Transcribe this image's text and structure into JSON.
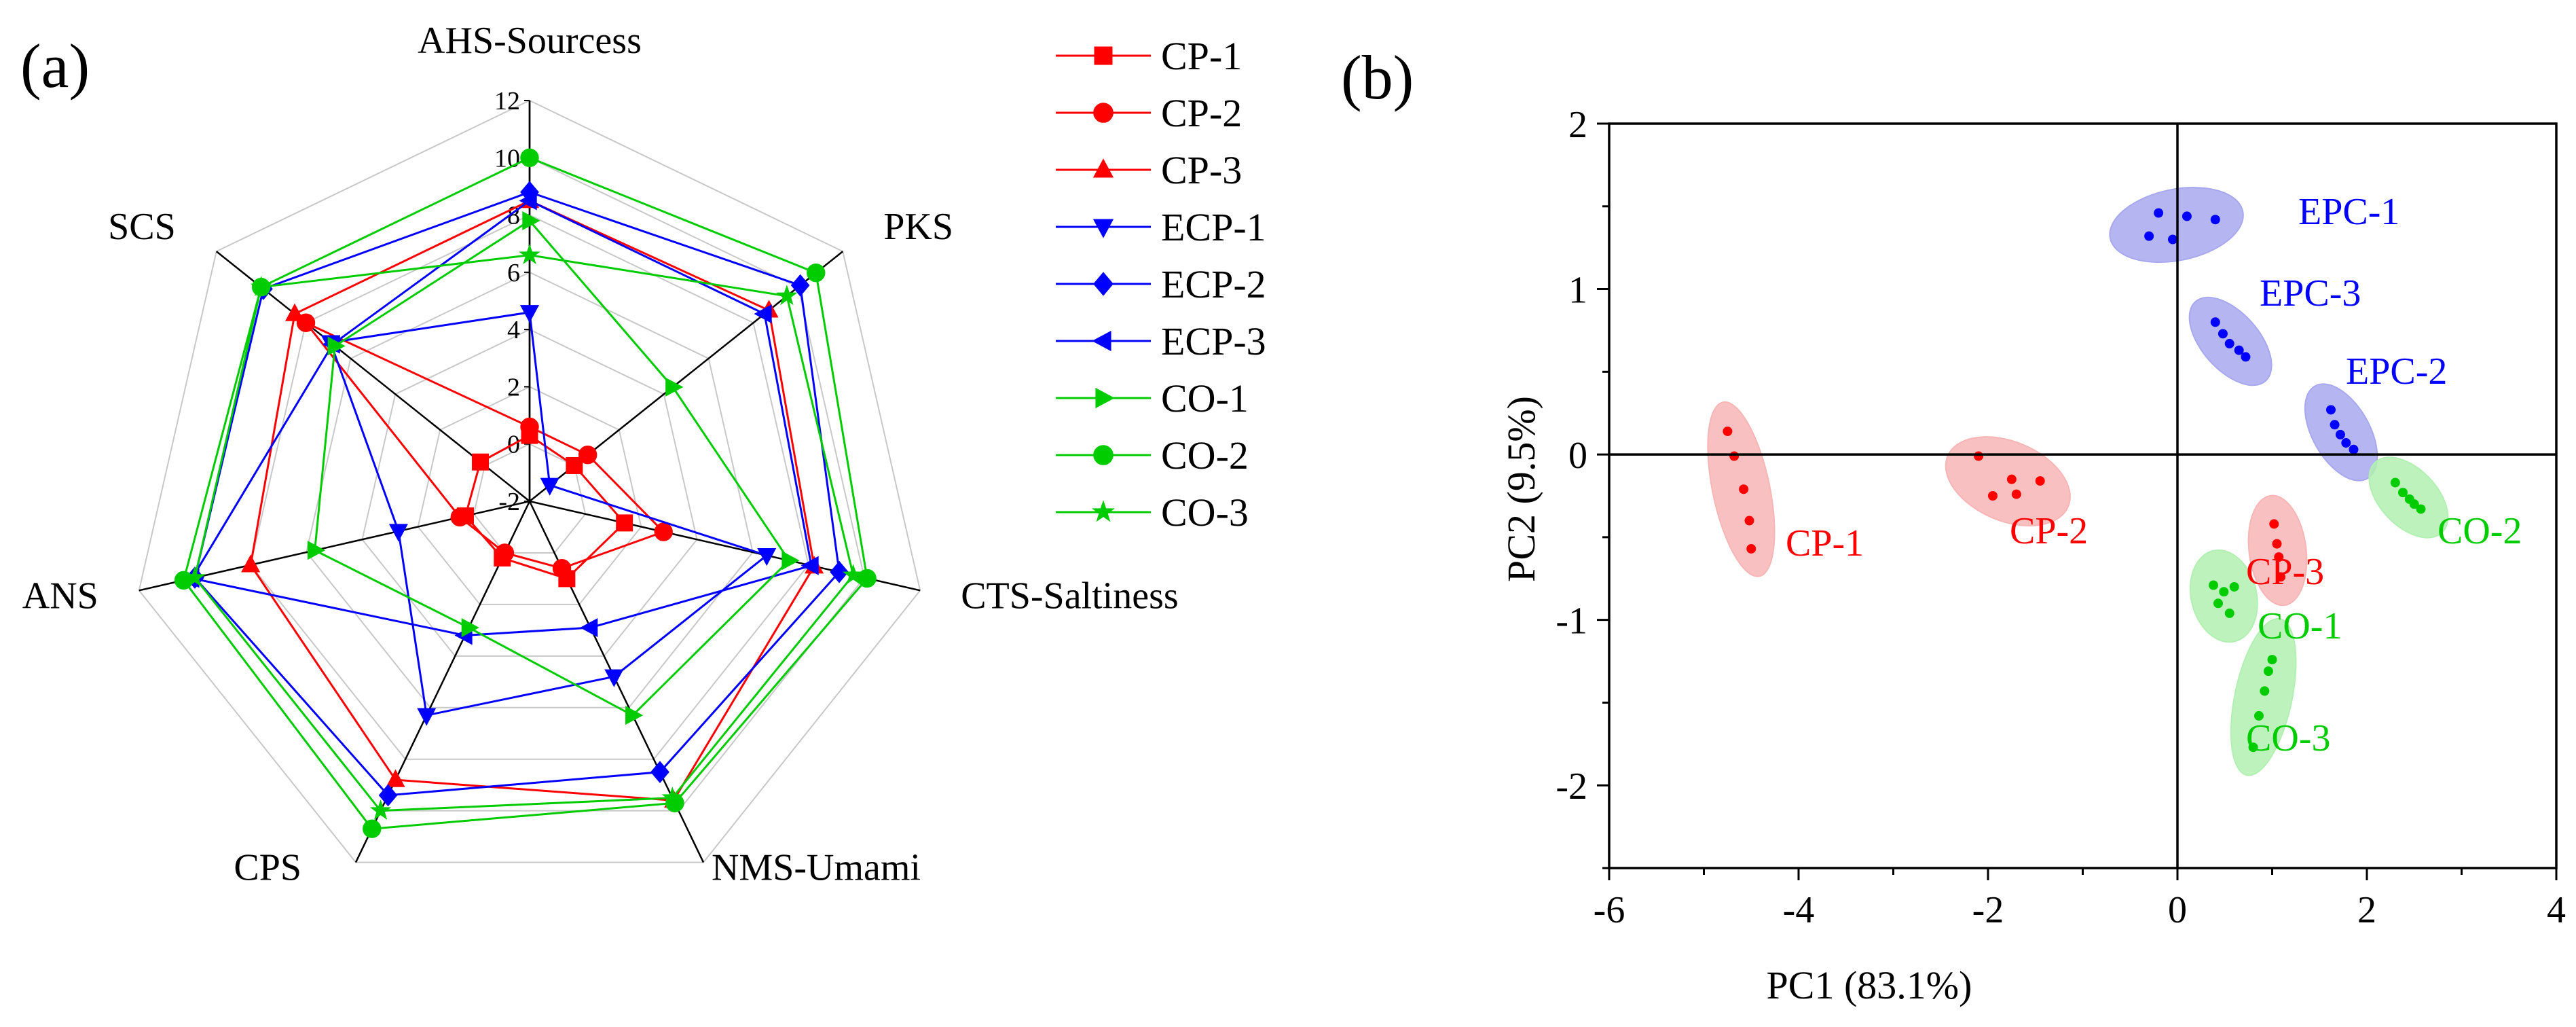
{
  "chart_data": [
    {
      "panel_label": "(a)",
      "type": "radar",
      "axes": [
        "AHS-Sourcess",
        "PKS",
        "CTS-Saltiness",
        "NMS-Umami",
        "CPS",
        "ANS",
        "SCS"
      ],
      "radial_ticks": [
        "-2",
        "0",
        "2",
        "4",
        "6",
        "8",
        "10",
        "12"
      ],
      "rlim": [
        -2,
        12
      ],
      "grid": true,
      "legend_position": "right",
      "series": [
        {
          "name": "CP-1",
          "color": "#ff0000",
          "marker": "square",
          "values": [
            0.3,
            0.0,
            1.4,
            1.0,
            0.2,
            0.3,
            0.2
          ]
        },
        {
          "name": "CP-2",
          "color": "#ff0000",
          "marker": "circle",
          "values": [
            0.6,
            0.6,
            2.8,
            0.6,
            0.0,
            0.5,
            8.0
          ]
        },
        {
          "name": "CP-3",
          "color": "#ff0000",
          "marker": "triangle-up",
          "values": [
            8.5,
            8.7,
            8.2,
            9.6,
            8.8,
            8.0,
            8.5
          ]
        },
        {
          "name": "ECP-1",
          "color": "#0000ff",
          "marker": "triangle-down",
          "values": [
            4.6,
            -1.1,
            6.5,
            4.8,
            6.3,
            2.7,
            6.9
          ]
        },
        {
          "name": "ECP-2",
          "color": "#0000ff",
          "marker": "diamond",
          "values": [
            8.8,
            10.1,
            9.1,
            8.5,
            9.4,
            10.0,
            9.9
          ]
        },
        {
          "name": "ECP-3",
          "color": "#0000ff",
          "marker": "triangle-left",
          "values": [
            8.5,
            8.5,
            8.1,
            2.9,
            3.2,
            10.1,
            6.8
          ]
        },
        {
          "name": "CO-1",
          "color": "#00cc00",
          "marker": "triangle-right",
          "values": [
            7.8,
            4.4,
            7.3,
            6.3,
            2.9,
            5.7,
            6.7
          ]
        },
        {
          "name": "CO-2",
          "color": "#00cc00",
          "marker": "circle",
          "values": [
            10.0,
            10.8,
            10.1,
            9.7,
            10.7,
            10.4,
            10.0
          ]
        },
        {
          "name": "CO-3",
          "color": "#00cc00",
          "marker": "star",
          "values": [
            6.6,
            9.5,
            9.6,
            9.5,
            10.0,
            10.0,
            10.0
          ]
        }
      ]
    },
    {
      "panel_label": "(b)",
      "type": "scatter",
      "xlabel": "PC1 (83.1%)",
      "ylabel": "PC2 (9.5%)",
      "xlim": [
        -6,
        4
      ],
      "ylim": [
        -2.5,
        2
      ],
      "xticks": [
        "-6",
        "-4",
        "-2",
        "0",
        "2",
        "4"
      ],
      "yticks": [
        "2",
        "1",
        "0",
        "-1",
        "-2"
      ],
      "reference_lines": [
        {
          "axis": "x",
          "value": 0
        },
        {
          "axis": "y",
          "value": 0
        }
      ],
      "groups": [
        {
          "name": "CP-1",
          "color": "#ff0000",
          "fill": "#f7b5b5",
          "points": [
            [
              -4.75,
              0.14
            ],
            [
              -4.68,
              -0.01
            ],
            [
              -4.58,
              -0.21
            ],
            [
              -4.52,
              -0.4
            ],
            [
              -4.5,
              -0.57
            ]
          ]
        },
        {
          "name": "CP-2",
          "color": "#ff0000",
          "fill": "#f7b5b5",
          "points": [
            [
              -2.1,
              -0.01
            ],
            [
              -1.95,
              -0.25
            ],
            [
              -1.75,
              -0.15
            ],
            [
              -1.7,
              -0.24
            ],
            [
              -1.45,
              -0.16
            ]
          ]
        },
        {
          "name": "CP-3",
          "color": "#ff0000",
          "fill": "#f7b5b5",
          "points": [
            [
              1.02,
              -0.42
            ],
            [
              1.05,
              -0.54
            ],
            [
              1.07,
              -0.62
            ],
            [
              1.09,
              -0.74
            ]
          ]
        },
        {
          "name": "EPC-1",
          "color": "#0000ff",
          "fill": "#a8a8ee",
          "points": [
            [
              -0.2,
              1.46
            ],
            [
              -0.05,
              1.3
            ],
            [
              0.1,
              1.44
            ],
            [
              0.4,
              1.42
            ],
            [
              -0.3,
              1.32
            ]
          ]
        },
        {
          "name": "EPC-2",
          "color": "#0000ff",
          "fill": "#a8a8ee",
          "points": [
            [
              1.62,
              0.27
            ],
            [
              1.66,
              0.18
            ],
            [
              1.72,
              0.12
            ],
            [
              1.78,
              0.07
            ],
            [
              1.86,
              0.03
            ]
          ]
        },
        {
          "name": "EPC-3",
          "color": "#0000ff",
          "fill": "#a8a8ee",
          "points": [
            [
              0.4,
              0.8
            ],
            [
              0.48,
              0.73
            ],
            [
              0.55,
              0.67
            ],
            [
              0.65,
              0.63
            ],
            [
              0.72,
              0.59
            ]
          ]
        },
        {
          "name": "CO-1",
          "color": "#00cc00",
          "fill": "#b2f0b2",
          "points": [
            [
              0.38,
              -0.79
            ],
            [
              0.49,
              -0.83
            ],
            [
              0.6,
              -0.8
            ],
            [
              0.43,
              -0.9
            ],
            [
              0.55,
              -0.96
            ]
          ]
        },
        {
          "name": "CO-2",
          "color": "#00cc00",
          "fill": "#b2f0b2",
          "points": [
            [
              2.3,
              -0.17
            ],
            [
              2.38,
              -0.23
            ],
            [
              2.45,
              -0.27
            ],
            [
              2.5,
              -0.3
            ],
            [
              2.57,
              -0.33
            ]
          ]
        },
        {
          "name": "CO-3",
          "color": "#00cc00",
          "fill": "#b2f0b2",
          "points": [
            [
              0.8,
              -1.77
            ],
            [
              0.86,
              -1.58
            ],
            [
              0.92,
              -1.43
            ],
            [
              0.96,
              -1.31
            ],
            [
              1.0,
              -1.24
            ]
          ]
        }
      ]
    }
  ]
}
